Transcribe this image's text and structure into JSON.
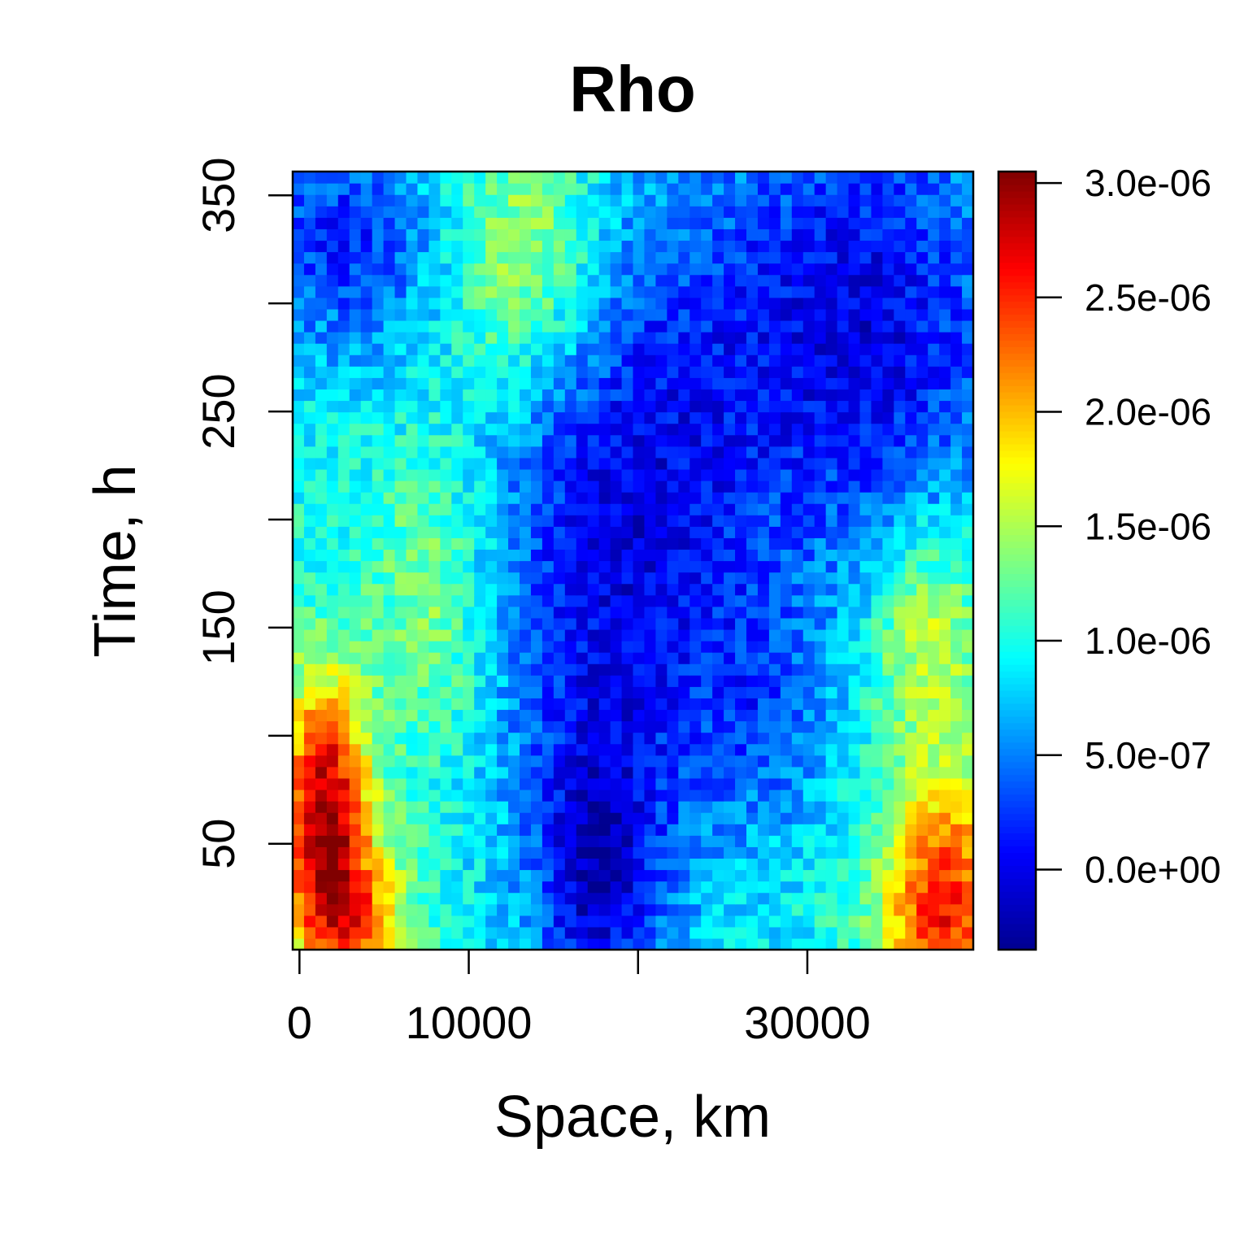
{
  "chart_data": {
    "type": "heatmap",
    "title": "Rho",
    "xlabel": "Space, km",
    "ylabel": "Time, h",
    "xlim": [
      -400,
      39800
    ],
    "ylim": [
      1,
      361
    ],
    "x_ticks": [
      0,
      10000,
      20000,
      30000
    ],
    "x_tick_labels": [
      "0",
      "10000",
      "",
      "30000"
    ],
    "y_ticks": [
      50,
      100,
      150,
      200,
      250,
      300,
      350
    ],
    "y_tick_labels": [
      "50",
      "",
      "150",
      "",
      "250",
      "",
      "350"
    ],
    "grid": false,
    "colorbar": {
      "palette": "jet",
      "range": [
        -3.5e-07,
        3.05e-06
      ],
      "ticks": [
        0,
        5e-07,
        1e-06,
        1.5e-06,
        2e-06,
        2.5e-06,
        3e-06
      ],
      "tick_labels": [
        "0.0e+00",
        "5.0e-07",
        "1.0e-06",
        "1.5e-06",
        "2.0e-06",
        "2.5e-06",
        "3.0e-06"
      ]
    },
    "grid_size": {
      "nx": 60,
      "ny": 68
    },
    "field": {
      "base": 1e-06,
      "noise": 2.5e-07,
      "features": [
        {
          "x": 1500,
          "y": 70,
          "sx": 1800,
          "sy": 40,
          "amp": 1.9e-06
        },
        {
          "x": 3000,
          "y": 15,
          "sx": 2500,
          "sy": 25,
          "amp": 1.2e-06
        },
        {
          "x": 8000,
          "y": 160,
          "sx": 2500,
          "sy": 50,
          "amp": 5e-07
        },
        {
          "x": 13500,
          "y": 320,
          "sx": 3500,
          "sy": 45,
          "amp": 8e-07
        },
        {
          "x": 38000,
          "y": 20,
          "sx": 2500,
          "sy": 45,
          "amp": 1.6e-06
        },
        {
          "x": 37000,
          "y": 150,
          "sx": 2500,
          "sy": 35,
          "amp": 7e-07
        },
        {
          "x": 2500,
          "y": 330,
          "sx": 4500,
          "sy": 40,
          "amp": -8e-07
        },
        {
          "x": 19000,
          "y": 190,
          "sx": 6000,
          "sy": 120,
          "amp": -1e-06
        },
        {
          "x": 17500,
          "y": 30,
          "sx": 2500,
          "sy": 50,
          "amp": -8e-07
        },
        {
          "x": 33500,
          "y": 290,
          "sx": 6500,
          "sy": 80,
          "amp": -1e-06
        },
        {
          "x": 28000,
          "y": 110,
          "sx": 3000,
          "sy": 40,
          "amp": -4e-07
        }
      ]
    }
  }
}
